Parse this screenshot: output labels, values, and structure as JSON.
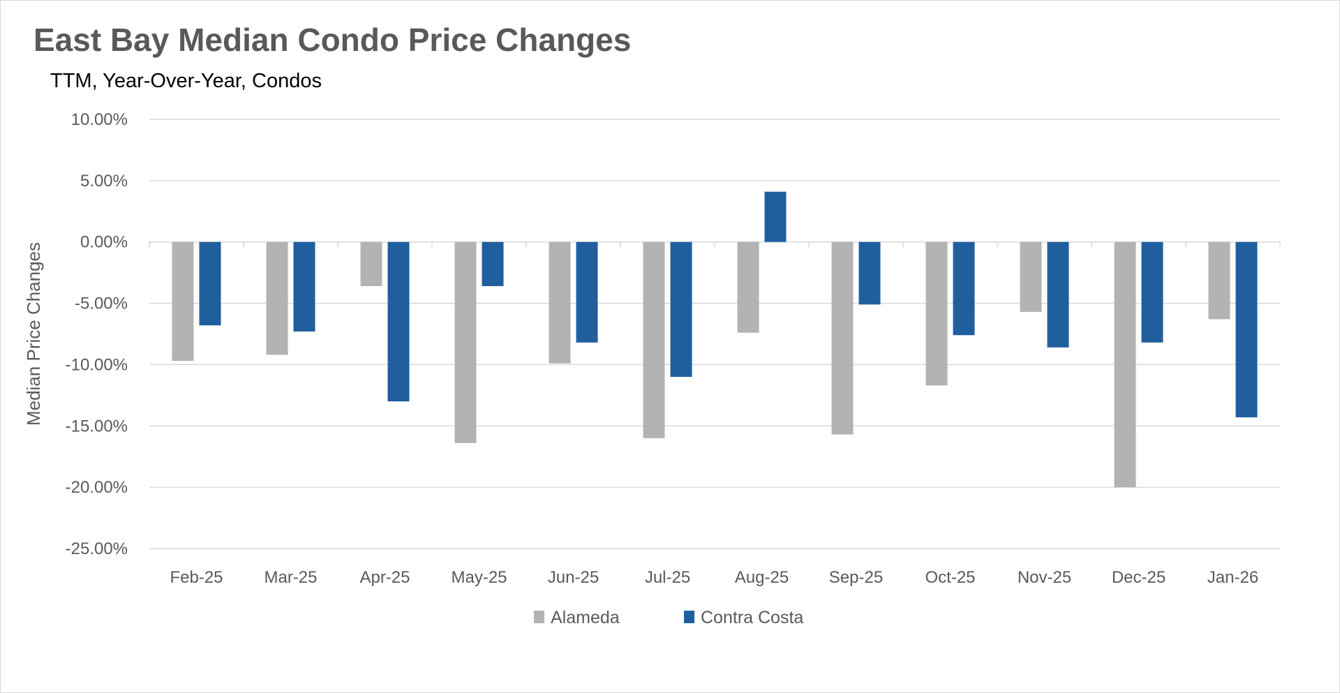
{
  "chart_data": {
    "type": "bar",
    "title": "East Bay Median Condo Price Changes",
    "subtitle": "TTM, Year-Over-Year,  Condos",
    "xlabel": "",
    "ylabel": "Median Price Changes",
    "ylim": [
      -25,
      10
    ],
    "yticks": [
      10,
      5,
      0,
      -5,
      -10,
      -15,
      -20,
      -25
    ],
    "ytick_labels": [
      "10.00%",
      "5.00%",
      "0.00%",
      "-5.00%",
      "-10.00%",
      "-15.00%",
      "-20.00%",
      "-25.00%"
    ],
    "grid": true,
    "legend_position": "bottom",
    "categories": [
      "Feb-25",
      "Mar-25",
      "Apr-25",
      "May-25",
      "Jun-25",
      "Jul-25",
      "Aug-25",
      "Sep-25",
      "Oct-25",
      "Nov-25",
      "Dec-25",
      "Jan-26"
    ],
    "series": [
      {
        "name": "Alameda",
        "color": "#b3b3b3",
        "values": [
          -9.7,
          -9.2,
          -3.6,
          -16.4,
          -9.9,
          -16.0,
          -7.4,
          -15.7,
          -11.7,
          -5.7,
          -20.0,
          -6.3
        ]
      },
      {
        "name": "Contra Costa",
        "color": "#1f5f9e",
        "values": [
          -6.8,
          -7.3,
          -13.0,
          -3.6,
          -8.2,
          -11.0,
          4.1,
          -5.1,
          -7.6,
          -8.6,
          -8.2,
          -14.3
        ]
      }
    ]
  }
}
